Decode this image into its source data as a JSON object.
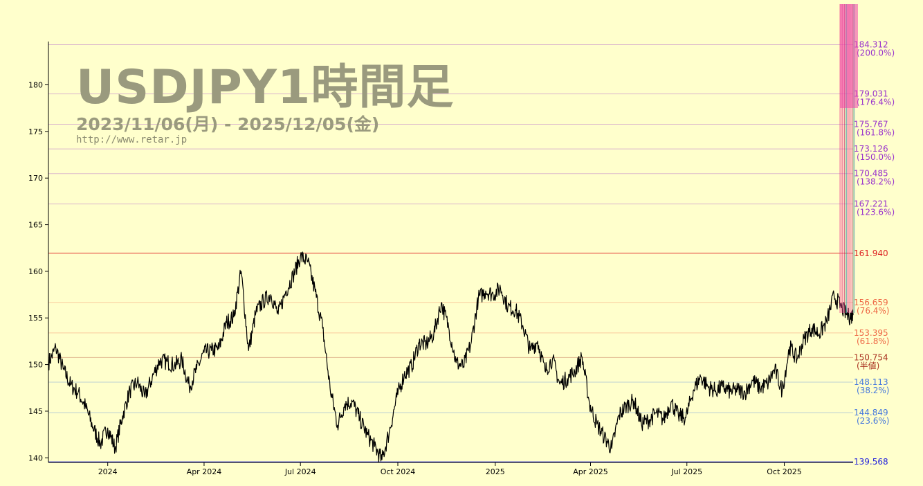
{
  "chart_data": {
    "type": "line",
    "title": "USDJPY1時間足",
    "subtitle": "2023/11/06(月) - 2025/12/05(金)",
    "url": "http://www.retar.jp",
    "ylim": [
      139.5,
      186.5
    ],
    "y_ticks": [
      140,
      145,
      150,
      155,
      160,
      165,
      170,
      175,
      180
    ],
    "x_ticks": [
      {
        "label": "2024",
        "x": "2024-01-01"
      },
      {
        "label": "Apr 2024",
        "x": "2024-04-01"
      },
      {
        "label": "Jul 2024",
        "x": "2024-07-01"
      },
      {
        "label": "Oct 2024",
        "x": "2024-10-01"
      },
      {
        "label": "2025",
        "x": "2025-01-01"
      },
      {
        "label": "Apr 2025",
        "x": "2025-04-01"
      },
      {
        "label": "Jul 2025",
        "x": "2025-07-01"
      },
      {
        "label": "Oct 2025",
        "x": "2025-10-01"
      }
    ],
    "x_range": [
      "2023-11-06",
      "2025-12-05"
    ],
    "series": [
      {
        "values": [
          [
            "2023-11-06",
            150.2
          ],
          [
            "2023-11-13",
            151.8
          ],
          [
            "2023-11-20",
            149.5
          ],
          [
            "2023-11-27",
            147.8
          ],
          [
            "2023-12-04",
            147.0
          ],
          [
            "2023-12-11",
            145.5
          ],
          [
            "2023-12-18",
            143.3
          ],
          [
            "2023-12-25",
            141.5
          ],
          [
            "2024-01-01",
            143.2
          ],
          [
            "2024-01-08",
            141.0
          ],
          [
            "2024-01-15",
            144.5
          ],
          [
            "2024-01-22",
            147.2
          ],
          [
            "2024-01-29",
            148.1
          ],
          [
            "2024-02-05",
            146.5
          ],
          [
            "2024-02-12",
            148.6
          ],
          [
            "2024-02-19",
            150.4
          ],
          [
            "2024-02-26",
            150.3
          ],
          [
            "2024-03-04",
            149.9
          ],
          [
            "2024-03-11",
            150.5
          ],
          [
            "2024-03-18",
            147.6
          ],
          [
            "2024-03-25",
            149.5
          ],
          [
            "2024-04-01",
            151.3
          ],
          [
            "2024-04-08",
            151.5
          ],
          [
            "2024-04-15",
            151.7
          ],
          [
            "2024-04-22",
            154.5
          ],
          [
            "2024-04-29",
            155.1
          ],
          [
            "2024-05-06",
            160.0
          ],
          [
            "2024-05-13",
            151.5
          ],
          [
            "2024-05-20",
            155.6
          ],
          [
            "2024-05-27",
            156.8
          ],
          [
            "2024-06-03",
            157.5
          ],
          [
            "2024-06-10",
            155.4
          ],
          [
            "2024-06-17",
            157.8
          ],
          [
            "2024-06-24",
            159.5
          ],
          [
            "2024-07-01",
            161.6
          ],
          [
            "2024-07-08",
            161.0
          ],
          [
            "2024-07-15",
            157.8
          ],
          [
            "2024-07-22",
            153.9
          ],
          [
            "2024-07-29",
            147.5
          ],
          [
            "2024-08-05",
            143.5
          ],
          [
            "2024-08-12",
            145.8
          ],
          [
            "2024-08-19",
            146.0
          ],
          [
            "2024-08-26",
            144.2
          ],
          [
            "2024-09-02",
            142.5
          ],
          [
            "2024-09-09",
            141.2
          ],
          [
            "2024-09-16",
            139.8
          ],
          [
            "2024-09-23",
            142.8
          ],
          [
            "2024-09-30",
            146.5
          ],
          [
            "2024-10-07",
            148.9
          ],
          [
            "2024-10-14",
            149.8
          ],
          [
            "2024-10-21",
            152.3
          ],
          [
            "2024-10-28",
            152.2
          ],
          [
            "2024-11-04",
            153.3
          ],
          [
            "2024-11-11",
            156.6
          ],
          [
            "2024-11-18",
            154.0
          ],
          [
            "2024-11-25",
            150.2
          ],
          [
            "2024-12-02",
            149.8
          ],
          [
            "2024-12-09",
            152.2
          ],
          [
            "2024-12-16",
            157.1
          ],
          [
            "2024-12-23",
            157.9
          ],
          [
            "2024-12-30",
            157.5
          ],
          [
            "2025-01-06",
            158.2
          ],
          [
            "2025-01-13",
            156.2
          ],
          [
            "2025-01-20",
            155.9
          ],
          [
            "2025-01-27",
            154.2
          ],
          [
            "2025-02-03",
            151.5
          ],
          [
            "2025-02-10",
            152.5
          ],
          [
            "2025-02-17",
            149.3
          ],
          [
            "2025-02-24",
            150.6
          ],
          [
            "2025-03-03",
            147.9
          ],
          [
            "2025-03-10",
            148.5
          ],
          [
            "2025-03-17",
            149.3
          ],
          [
            "2025-03-24",
            150.8
          ],
          [
            "2025-03-31",
            145.8
          ],
          [
            "2025-04-07",
            143.6
          ],
          [
            "2025-04-14",
            142.2
          ],
          [
            "2025-04-21",
            141.0
          ],
          [
            "2025-04-28",
            144.6
          ],
          [
            "2025-05-05",
            145.6
          ],
          [
            "2025-05-12",
            146.1
          ],
          [
            "2025-05-19",
            143.7
          ],
          [
            "2025-05-26",
            144.0
          ],
          [
            "2025-06-02",
            144.8
          ],
          [
            "2025-06-09",
            144.1
          ],
          [
            "2025-06-16",
            146.0
          ],
          [
            "2025-06-23",
            144.5
          ],
          [
            "2025-06-30",
            144.3
          ],
          [
            "2025-07-07",
            147.2
          ],
          [
            "2025-07-14",
            148.7
          ],
          [
            "2025-07-21",
            147.6
          ],
          [
            "2025-07-28",
            147.2
          ],
          [
            "2025-08-04",
            147.6
          ],
          [
            "2025-08-11",
            147.1
          ],
          [
            "2025-08-18",
            147.3
          ],
          [
            "2025-08-25",
            147.0
          ],
          [
            "2025-09-01",
            148.3
          ],
          [
            "2025-09-08",
            147.5
          ],
          [
            "2025-09-15",
            147.9
          ],
          [
            "2025-09-22",
            149.5
          ],
          [
            "2025-09-29",
            147.2
          ],
          [
            "2025-10-06",
            151.9
          ],
          [
            "2025-10-13",
            150.6
          ],
          [
            "2025-10-20",
            152.8
          ],
          [
            "2025-10-27",
            153.9
          ],
          [
            "2025-11-03",
            153.3
          ],
          [
            "2025-11-10",
            154.6
          ],
          [
            "2025-11-17",
            157.4
          ],
          [
            "2025-11-24",
            156.1
          ],
          [
            "2025-12-01",
            155.1
          ],
          [
            "2025-12-05",
            155.3
          ]
        ]
      }
    ],
    "levels": [
      {
        "value": "184.312",
        "note": "(200.0%)",
        "y": 184.312,
        "color": "#9933cc"
      },
      {
        "value": "179.031",
        "note": "(176.4%)",
        "y": 179.031,
        "color": "#9933cc"
      },
      {
        "value": "175.767",
        "note": "(161.8%)",
        "y": 175.767,
        "color": "#9933cc"
      },
      {
        "value": "173.126",
        "note": "(150.0%)",
        "y": 173.126,
        "color": "#9933cc"
      },
      {
        "value": "170.485",
        "note": "(138.2%)",
        "y": 170.485,
        "color": "#9933cc"
      },
      {
        "value": "167.221",
        "note": "(123.6%)",
        "y": 167.221,
        "color": "#9933cc"
      },
      {
        "value": "161.940",
        "note": "",
        "y": 161.94,
        "color": "#dd2222"
      },
      {
        "value": "156.659",
        "note": "(76.4%)",
        "y": 156.659,
        "color": "#ee6644"
      },
      {
        "value": "153.395",
        "note": "(61.8%)",
        "y": 153.395,
        "color": "#ee6644"
      },
      {
        "value": "150.754",
        "note": "(半値)",
        "y": 150.754,
        "color": "#aa3322"
      },
      {
        "value": "148.113",
        "note": "(38.2%)",
        "y": 148.113,
        "color": "#4477dd"
      },
      {
        "value": "144.849",
        "note": "(23.6%)",
        "y": 144.849,
        "color": "#4477dd"
      },
      {
        "value": "139.568",
        "note": "",
        "y": 139.568,
        "color": "#2222dd"
      }
    ],
    "grid": true
  }
}
